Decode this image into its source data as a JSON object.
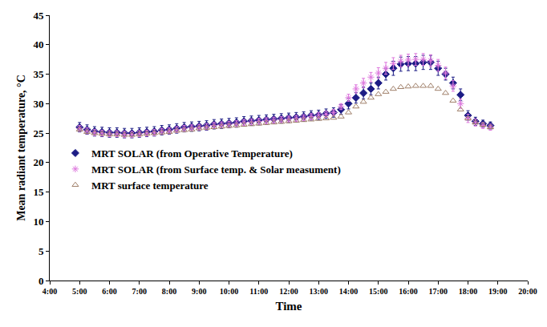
{
  "chart_data": {
    "type": "scatter",
    "x_label": "Time",
    "y_label": "Mean radiant temperature, °C",
    "xlim": [
      4,
      20
    ],
    "xticks": [
      {
        "value": 4,
        "label": "4:00"
      },
      {
        "value": 5,
        "label": "5:00"
      },
      {
        "value": 6,
        "label": "6:00"
      },
      {
        "value": 7,
        "label": "7:00"
      },
      {
        "value": 8,
        "label": "8:00"
      },
      {
        "value": 9,
        "label": "9:00"
      },
      {
        "value": 10,
        "label": "10:00"
      },
      {
        "value": 11,
        "label": "11:00"
      },
      {
        "value": 12,
        "label": "12:00"
      },
      {
        "value": 13,
        "label": "13:00"
      },
      {
        "value": 14,
        "label": "14:00"
      },
      {
        "value": 15,
        "label": "15:00"
      },
      {
        "value": 16,
        "label": "16:00"
      },
      {
        "value": 17,
        "label": "17:00"
      },
      {
        "value": 18,
        "label": "18:00"
      },
      {
        "value": 19,
        "label": "19:00"
      },
      {
        "value": 20,
        "label": "20:00"
      }
    ],
    "ylim": [
      0,
      45
    ],
    "yticks": [
      0,
      5,
      10,
      15,
      20,
      25,
      30,
      35,
      40,
      45
    ],
    "grid": false,
    "legend": "left",
    "x": [
      5,
      5.25,
      5.5,
      5.75,
      6,
      6.25,
      6.5,
      6.75,
      7,
      7.25,
      7.5,
      7.75,
      8,
      8.25,
      8.5,
      8.75,
      9,
      9.25,
      9.5,
      9.75,
      10,
      10.25,
      10.5,
      10.75,
      11,
      11.25,
      11.5,
      11.75,
      12,
      12.25,
      12.5,
      12.75,
      13,
      13.25,
      13.5,
      13.75,
      14,
      14.25,
      14.5,
      14.75,
      15,
      15.25,
      15.5,
      15.75,
      16,
      16.25,
      16.5,
      16.75,
      17,
      17.25,
      17.5,
      17.75,
      18,
      18.25,
      18.5,
      18.75
    ],
    "series": [
      {
        "name": "MRT SOLAR (from Operative Temperature)",
        "color": "#1c1c85",
        "marker": "diamond",
        "values": [
          26.0,
          25.6,
          25.3,
          25.2,
          25.1,
          25.1,
          25.0,
          25.0,
          25.1,
          25.2,
          25.3,
          25.5,
          25.6,
          25.8,
          26.0,
          26.1,
          26.2,
          26.3,
          26.5,
          26.6,
          26.7,
          26.8,
          27.0,
          27.1,
          27.2,
          27.3,
          27.4,
          27.5,
          27.6,
          27.7,
          27.8,
          28.0,
          28.1,
          28.3,
          28.5,
          29.0,
          30.0,
          31.0,
          31.8,
          32.5,
          33.5,
          35.0,
          36.0,
          36.7,
          36.8,
          36.8,
          37.0,
          37.0,
          36.0,
          35.0,
          33.5,
          31.5,
          28.0,
          27.0,
          26.6,
          26.3
        ],
        "errors": [
          0.8,
          0.8,
          0.8,
          0.8,
          0.8,
          0.8,
          0.8,
          0.8,
          0.8,
          0.8,
          0.8,
          0.8,
          0.8,
          0.8,
          0.8,
          0.8,
          0.8,
          0.8,
          0.8,
          0.8,
          0.8,
          0.8,
          0.8,
          0.8,
          0.8,
          0.8,
          0.8,
          0.8,
          0.8,
          0.8,
          0.8,
          0.8,
          0.8,
          0.8,
          0.8,
          0.8,
          0.9,
          0.9,
          1.0,
          1.0,
          1.0,
          1.0,
          1.2,
          1.2,
          1.2,
          1.2,
          1.2,
          1.2,
          1.2,
          1.0,
          1.0,
          1.0,
          0.8,
          0.7,
          0.6,
          0.6
        ]
      },
      {
        "name": "MRT SOLAR (from Surface temp. & Solar measument)",
        "color": "#dd77dd",
        "marker": "asterisk",
        "values": [
          25.8,
          25.4,
          25.1,
          25.0,
          24.9,
          24.9,
          24.8,
          24.8,
          24.9,
          25.0,
          25.1,
          25.3,
          25.4,
          25.6,
          25.8,
          25.9,
          26.0,
          26.1,
          26.3,
          26.4,
          26.5,
          26.6,
          26.8,
          26.9,
          27.0,
          27.1,
          27.2,
          27.3,
          27.4,
          27.5,
          27.6,
          27.8,
          28.0,
          28.2,
          28.5,
          29.5,
          31.0,
          32.5,
          33.5,
          34.5,
          35.2,
          36.0,
          36.8,
          37.2,
          37.4,
          37.5,
          37.5,
          37.3,
          36.5,
          35.2,
          33.0,
          30.0,
          27.5,
          26.8,
          26.3,
          26.0
        ],
        "errors": [
          0.5,
          0.5,
          0.5,
          0.5,
          0.5,
          0.5,
          0.5,
          0.5,
          0.5,
          0.5,
          0.5,
          0.5,
          0.5,
          0.5,
          0.5,
          0.5,
          0.5,
          0.5,
          0.5,
          0.5,
          0.5,
          0.5,
          0.5,
          0.5,
          0.5,
          0.5,
          0.5,
          0.5,
          0.5,
          0.5,
          0.5,
          0.5,
          0.5,
          0.5,
          0.5,
          0.5,
          0.6,
          0.7,
          0.8,
          0.8,
          0.9,
          1.0,
          1.0,
          1.0,
          1.0,
          1.0,
          1.0,
          1.0,
          1.0,
          1.0,
          0.9,
          0.8,
          0.7,
          0.6,
          0.5,
          0.5
        ]
      },
      {
        "name": "MRT surface temperature",
        "color": "#a0806a",
        "marker": "triangle-open",
        "values": [
          25.6,
          25.2,
          25.0,
          24.9,
          24.8,
          24.8,
          24.7,
          24.7,
          24.8,
          24.9,
          25.0,
          25.1,
          25.2,
          25.4,
          25.5,
          25.6,
          25.8,
          25.9,
          26.0,
          26.1,
          26.2,
          26.3,
          26.4,
          26.5,
          26.6,
          26.7,
          26.8,
          26.9,
          27.0,
          27.1,
          27.2,
          27.3,
          27.4,
          27.5,
          27.6,
          27.8,
          28.5,
          29.5,
          30.3,
          31.0,
          31.6,
          32.0,
          32.5,
          32.8,
          32.9,
          33.0,
          33.0,
          33.0,
          32.5,
          31.8,
          30.5,
          29.0,
          27.5,
          26.8,
          26.4,
          26.0
        ]
      }
    ]
  }
}
